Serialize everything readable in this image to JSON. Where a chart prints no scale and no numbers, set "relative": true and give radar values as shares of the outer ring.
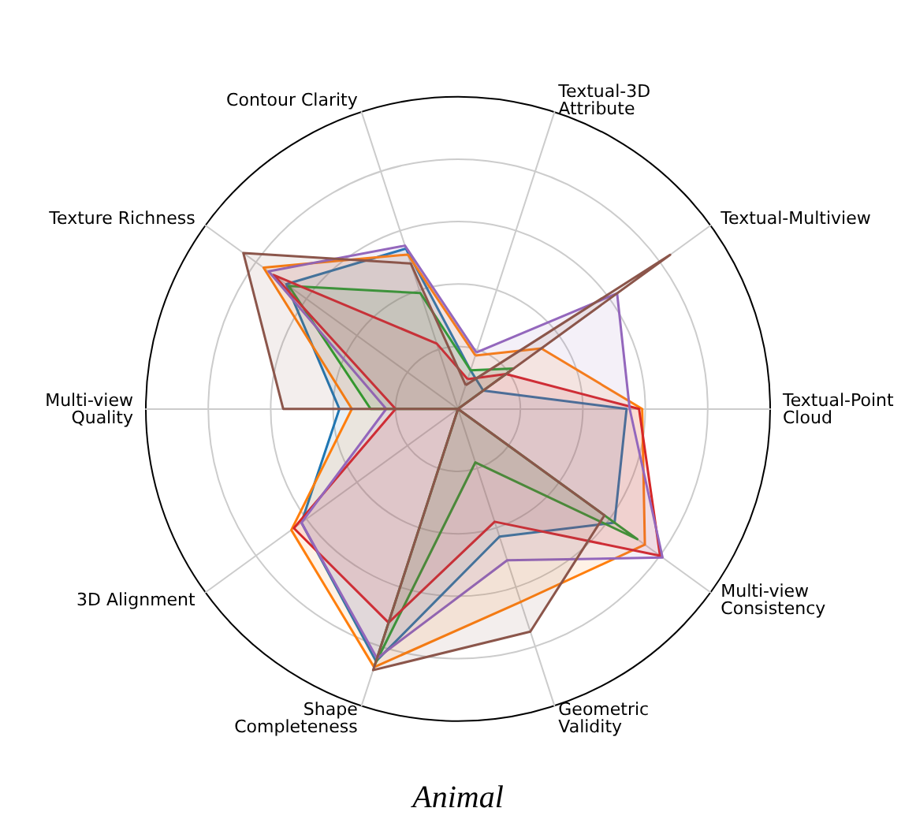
{
  "chart_data": {
    "type": "radar",
    "title": "Animal",
    "relative": true,
    "grid": true,
    "categories": [
      "Textual-3D\nAttribute",
      "Textual-Multiview",
      "Textual-Point\nCloud",
      "Multi-view\nConsistency",
      "Geometric\nValidity",
      "Shape\nCompleteness",
      "3D Alignment",
      "Multi-view\nQuality",
      "Texture Richness",
      "Contour Clarity"
    ],
    "series": [
      {
        "color": "#1f77b4",
        "values": [
          0.13,
          0.1,
          0.54,
          0.62,
          0.43,
          0.85,
          0.62,
          0.38,
          0.68,
          0.54
        ]
      },
      {
        "color": "#ff7f0e",
        "values": [
          0.18,
          0.33,
          0.59,
          0.74,
          0.65,
          0.87,
          0.66,
          0.34,
          0.77,
          0.52
        ]
      },
      {
        "color": "#2ca02c",
        "values": [
          0.13,
          0.22,
          0,
          0.71,
          0.18,
          0.86,
          0,
          0.28,
          0.67,
          0.39
        ]
      },
      {
        "color": "#d62728",
        "values": [
          0.1,
          0.19,
          0.58,
          0.8,
          0.38,
          0.72,
          0.65,
          0.2,
          0.73,
          0.22
        ]
      },
      {
        "color": "#9467bd",
        "values": [
          0.19,
          0.63,
          0.55,
          0.81,
          0.51,
          0.84,
          0.62,
          0.23,
          0.75,
          0.55
        ]
      },
      {
        "color": "#8c564b",
        "values": [
          0.08,
          0.84,
          0,
          0.58,
          0.75,
          0.88,
          0,
          0.56,
          0.85,
          0.49
        ]
      }
    ]
  }
}
